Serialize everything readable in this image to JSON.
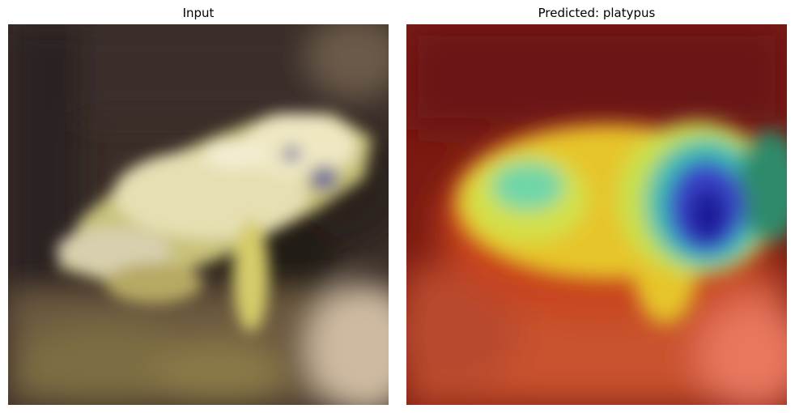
{
  "figure": {
    "panels": [
      {
        "title": "Input",
        "image_description": "Low-resolution blurry photo of a yellow-green frog on a dark background"
      },
      {
        "title": "Predicted: platypus",
        "image_description": "Grad-CAM style heatmap overlay (jet colormap) on the same frog image; strongest activation (blue) over the frog's head on the right"
      }
    ]
  }
}
